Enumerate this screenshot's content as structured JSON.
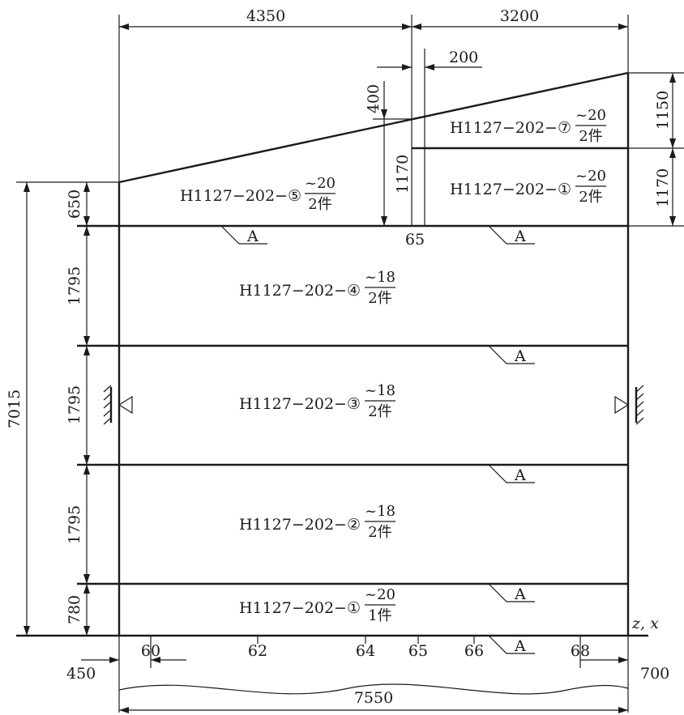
{
  "dimensions": {
    "top_left": "4350",
    "top_right": "3200",
    "gap": "200",
    "step_400": "400",
    "rise_1170": "1170",
    "right_1150": "1150",
    "right_1170": "1170",
    "left_650": "650",
    "left_1795_a": "1795",
    "left_1795_b": "1795",
    "left_1795_c": "1795",
    "left_780": "780",
    "overall_height": "7015",
    "offset_left": "450",
    "offset_right": "700",
    "overall_width": "7550"
  },
  "plates": [
    {
      "code": "H1127−202−⑦",
      "thickness": "~20",
      "qty": "2件"
    },
    {
      "code": "H1127−202−①",
      "thickness": "~20",
      "qty": "2件"
    },
    {
      "code": "H1127−202−⑤",
      "thickness": "~20",
      "qty": "2件"
    },
    {
      "code": "H1127−202−④",
      "thickness": "~18",
      "qty": "2件"
    },
    {
      "code": "H1127−202−③",
      "thickness": "~18",
      "qty": "2件"
    },
    {
      "code": "H1127−202−②",
      "thickness": "~18",
      "qty": "2件"
    },
    {
      "code": "H1127−202−①",
      "thickness": "~20",
      "qty": "1件"
    }
  ],
  "frame_labels": {
    "mid": "65",
    "axis": "z, x",
    "ticks": [
      "60",
      "62",
      "64",
      "65",
      "66",
      "68"
    ]
  },
  "weld_marks": [
    "A",
    "A",
    "A",
    "A",
    "A",
    "A"
  ]
}
